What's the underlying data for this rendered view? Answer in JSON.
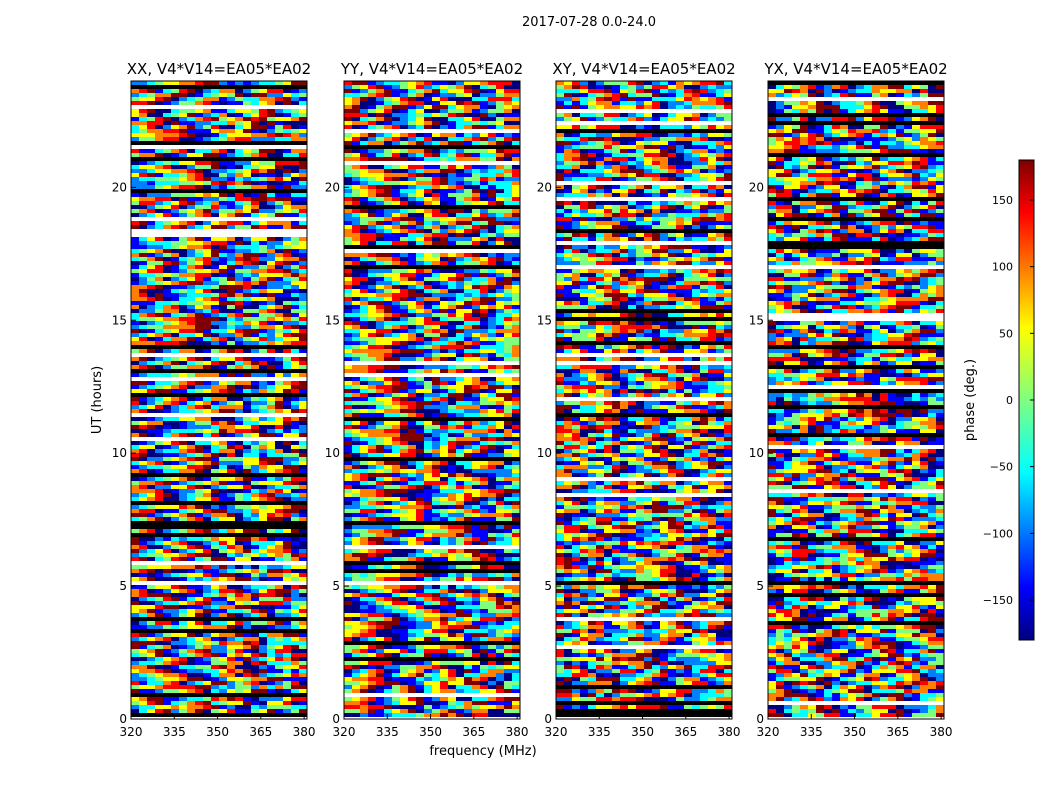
{
  "figure_title": "2017-07-28 0.0-24.0",
  "chart_data": {
    "type": "heatmap",
    "title": "2017-07-28 0.0-24.0",
    "xlabel": "frequency (MHz)",
    "ylabel": "UT (hours)",
    "xlim": [
      320,
      381
    ],
    "ylim": [
      0,
      24
    ],
    "xticks": [
      320,
      335,
      350,
      365,
      380
    ],
    "yticks": [
      0,
      5,
      10,
      15,
      20
    ],
    "panels": [
      {
        "name": "XX",
        "title": "XX, V4*V14=EA05*EA02"
      },
      {
        "name": "YY",
        "title": "YY, V4*V14=EA05*EA02"
      },
      {
        "name": "XY",
        "title": "XY, V4*V14=EA05*EA02"
      },
      {
        "name": "YX",
        "title": "YX, V4*V14=EA05*EA02"
      }
    ],
    "colorbar": {
      "label": "phase (deg.)",
      "range": [
        -180,
        180
      ],
      "ticks": [
        -150,
        -100,
        -50,
        0,
        50,
        100,
        150
      ],
      "tick_labels": [
        "−150",
        "−100",
        "−50",
        "0",
        "50",
        "100",
        "150"
      ],
      "colormap": "jet"
    },
    "colors": {
      "flagged_gap": "#ffffff",
      "flagged_band": "#000000",
      "jet": [
        "#00007f",
        "#0000ff",
        "#007fff",
        "#00ffff",
        "#7fff7f",
        "#ffff00",
        "#ff7f00",
        "#ff0000",
        "#7f0000"
      ]
    }
  }
}
